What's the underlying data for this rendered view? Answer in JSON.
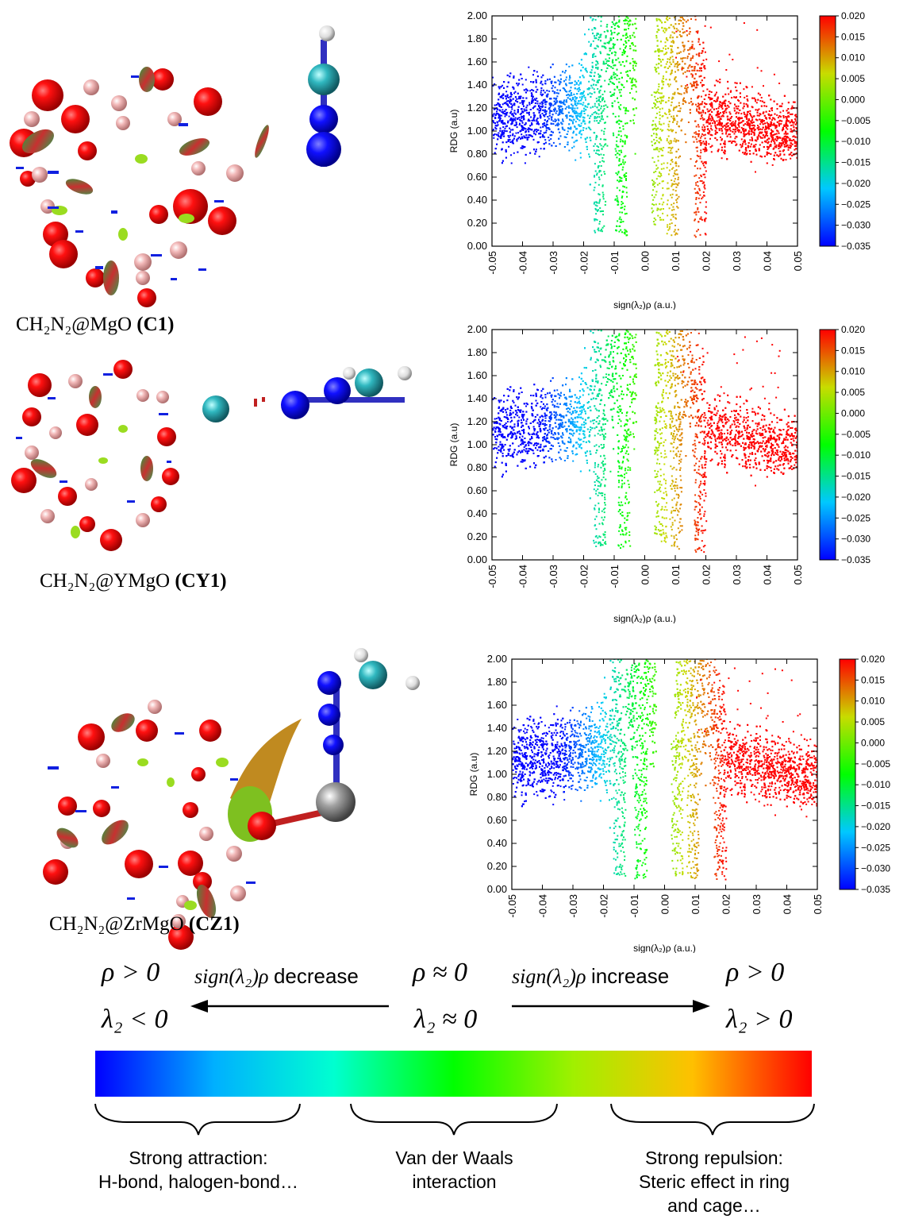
{
  "captions": [
    {
      "formula": "CH₂N₂@MgO",
      "label": "(C1)"
    },
    {
      "formula": "CH₂N₂@YMgO",
      "label": "(CY1)"
    },
    {
      "formula": "CH₂N₂@ZrMgO",
      "label": "(CZ1)"
    }
  ],
  "legend_scale": {
    "left_top": "ρ > 0",
    "left_bottom": "λ₂ < 0",
    "center_top": "ρ ≈ 0",
    "center_bottom": "λ₂ ≈ 0",
    "right_top": "ρ > 0",
    "right_bottom": "λ₂ > 0",
    "decrease_math": "sign(λ₂)ρ",
    "decrease_word": "decrease",
    "increase_math": "sign(λ₂)ρ",
    "increase_word": "increase",
    "gradient_colors": [
      "#0000ff",
      "#00b0ff",
      "#00ffd0",
      "#00ff00",
      "#a0f000",
      "#ffc000",
      "#ff0000"
    ],
    "regions": [
      {
        "line1": "Strong attraction:",
        "line2": "H-bond, halogen-bond…",
        "line3": ""
      },
      {
        "line1": "Van der Waals",
        "line2": "interaction",
        "line3": ""
      },
      {
        "line1": "Strong repulsion:",
        "line2": "Steric effect in ring",
        "line3": "and cage…"
      }
    ]
  },
  "chart_data": [
    {
      "type": "scatter",
      "title": "",
      "xlabel": "sign(λ₂)ρ (a.u.)",
      "ylabel": "RDG (a.u)",
      "xlim": [
        -0.05,
        0.05
      ],
      "ylim": [
        0,
        2
      ],
      "xticks": [
        "-0.05",
        "-0.04",
        "-0.03",
        "-0.02",
        "-0.01",
        "0.00",
        "0.01",
        "0.02",
        "0.03",
        "0.04",
        "0.05"
      ],
      "yticks": [
        "0.00",
        "0.20",
        "0.40",
        "0.60",
        "0.80",
        "1.00",
        "1.20",
        "1.40",
        "1.60",
        "1.80",
        "2.00"
      ],
      "colorbar": {
        "range": [
          -0.035,
          0.02
        ],
        "ticks": [
          "0.020",
          "0.015",
          "0.010",
          "0.005",
          "0.000",
          "−0.005",
          "−0.010",
          "−0.015",
          "−0.020",
          "−0.025",
          "−0.030",
          "−0.035"
        ],
        "colors": [
          "#0000ff",
          "#00c8ff",
          "#00ff00",
          "#c8dc00",
          "#ff0000"
        ]
      },
      "spikes": [
        {
          "x": -0.015,
          "rdg_min": 0.12
        },
        {
          "x": -0.008,
          "rdg_min": 0.08
        },
        {
          "x": 0.004,
          "rdg_min": 0.15
        },
        {
          "x": 0.009,
          "rdg_min": 0.1
        },
        {
          "x": 0.018,
          "rdg_min": 0.07
        }
      ]
    },
    {
      "type": "scatter",
      "title": "",
      "xlabel": "sign(λ₂)ρ (a.u.)",
      "ylabel": "RDG (a.u)",
      "xlim": [
        -0.05,
        0.05
      ],
      "ylim": [
        0,
        2
      ],
      "xticks": [
        "-0.05",
        "-0.04",
        "-0.03",
        "-0.02",
        "-0.01",
        "0.00",
        "0.01",
        "0.02",
        "0.03",
        "0.04",
        "0.05"
      ],
      "yticks": [
        "0.00",
        "0.20",
        "0.40",
        "0.60",
        "0.80",
        "1.00",
        "1.20",
        "1.40",
        "1.60",
        "1.80",
        "2.00"
      ],
      "colorbar": {
        "range": [
          -0.035,
          0.02
        ],
        "ticks": [
          "0.020",
          "0.015",
          "0.010",
          "0.005",
          "0.000",
          "−0.005",
          "−0.010",
          "−0.015",
          "−0.020",
          "−0.025",
          "−0.030",
          "−0.035"
        ],
        "colors": [
          "#0000ff",
          "#00c8ff",
          "#00ff00",
          "#c8dc00",
          "#ff0000"
        ]
      },
      "spikes": [
        {
          "x": -0.015,
          "rdg_min": 0.12
        },
        {
          "x": -0.007,
          "rdg_min": 0.1
        },
        {
          "x": 0.005,
          "rdg_min": 0.14
        },
        {
          "x": 0.01,
          "rdg_min": 0.1
        },
        {
          "x": 0.018,
          "rdg_min": 0.07
        }
      ]
    },
    {
      "type": "scatter",
      "title": "",
      "xlabel": "sign(λ₂)ρ (a.u.)",
      "ylabel": "RDG (a.u)",
      "xlim": [
        -0.05,
        0.05
      ],
      "ylim": [
        0,
        2
      ],
      "xticks": [
        "-0.05",
        "-0.04",
        "-0.03",
        "-0.02",
        "-0.01",
        "0.00",
        "0.01",
        "0.02",
        "0.03",
        "0.04",
        "0.05"
      ],
      "yticks": [
        "0.00",
        "0.20",
        "0.40",
        "0.60",
        "0.80",
        "1.00",
        "1.20",
        "1.40",
        "1.60",
        "1.80",
        "2.00"
      ],
      "colorbar": {
        "range": [
          -0.035,
          0.02
        ],
        "ticks": [
          "0.020",
          "0.015",
          "0.010",
          "0.005",
          "0.000",
          "−0.005",
          "−0.010",
          "−0.015",
          "−0.020",
          "−0.025",
          "−0.030",
          "−0.035"
        ],
        "colors": [
          "#0000ff",
          "#00c8ff",
          "#00ff00",
          "#c8dc00",
          "#ff0000"
        ]
      },
      "spikes": [
        {
          "x": -0.015,
          "rdg_min": 0.12
        },
        {
          "x": -0.008,
          "rdg_min": 0.1
        },
        {
          "x": 0.004,
          "rdg_min": 0.12
        },
        {
          "x": 0.009,
          "rdg_min": 0.1
        },
        {
          "x": 0.018,
          "rdg_min": 0.07
        }
      ]
    }
  ]
}
